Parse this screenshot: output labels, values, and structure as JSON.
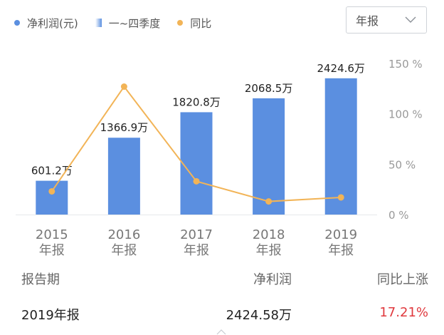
{
  "legend": {
    "net_profit": "净利润(元)",
    "quarters": "一~四季度",
    "yoy": "同比"
  },
  "colors": {
    "bar": "#5b8fe0",
    "line": "#f2b457",
    "positive": "#e0393e"
  },
  "period_select": {
    "value": "年报",
    "icon": "chevron-down-icon"
  },
  "chart_data": {
    "type": "bar",
    "categories": [
      [
        "2015",
        "年报"
      ],
      [
        "2016",
        "年报"
      ],
      [
        "2017",
        "年报"
      ],
      [
        "2018",
        "年报"
      ],
      [
        "2019",
        "年报"
      ]
    ],
    "series": [
      {
        "name": "净利润(元)",
        "type": "bar",
        "unit": "万",
        "values": [
          601.2,
          1366.9,
          1820.8,
          2068.5,
          2424.6
        ],
        "labels": [
          "601.2万",
          "1366.9万",
          "1820.8万",
          "2068.5万",
          "2424.6万"
        ]
      },
      {
        "name": "同比",
        "type": "line",
        "axis": "right",
        "unit": "%",
        "values": [
          23,
          127,
          33,
          13,
          17
        ]
      }
    ],
    "y_left_range": [
      0,
      2600
    ],
    "y_right_range": [
      0,
      150
    ],
    "y_right_ticks": [
      "150 %",
      "100 %",
      "50 %",
      "0 %"
    ],
    "grid": false,
    "legend_position": "top-left"
  },
  "table": {
    "headers": [
      "报告期",
      "净利润",
      "同比上涨"
    ],
    "rows": [
      {
        "period": "2019年报",
        "profit": "2424.58万",
        "yoy": "17.21%"
      }
    ]
  }
}
